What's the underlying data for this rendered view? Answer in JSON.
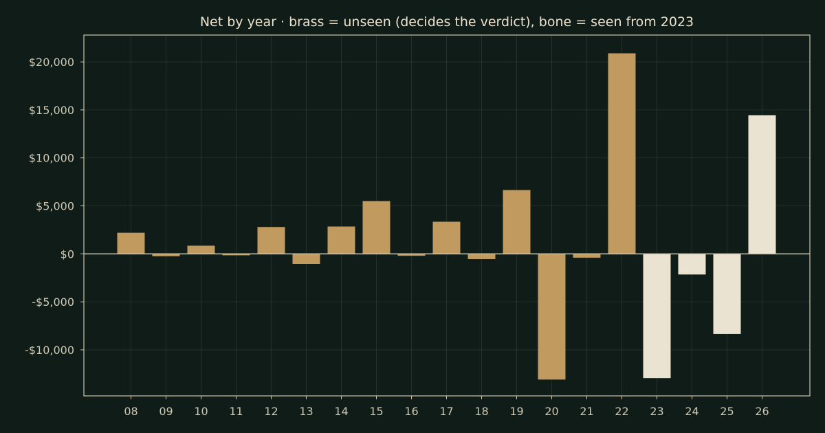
{
  "chart_data": {
    "type": "bar",
    "title": "Net by year  ·  brass = unseen (decides the verdict), bone = seen from 2023",
    "xlabel": "",
    "ylabel": "",
    "categories": [
      "08",
      "09",
      "10",
      "11",
      "12",
      "13",
      "14",
      "15",
      "16",
      "17",
      "18",
      "19",
      "20",
      "21",
      "22",
      "23",
      "24",
      "25",
      "26"
    ],
    "values": [
      2200,
      -250,
      850,
      -150,
      2800,
      -1050,
      2850,
      5500,
      -200,
      3350,
      -550,
      6650,
      -13100,
      -400,
      20900,
      -12950,
      -2150,
      -8350,
      14450
    ],
    "groups": [
      "unseen",
      "unseen",
      "unseen",
      "unseen",
      "unseen",
      "unseen",
      "unseen",
      "unseen",
      "unseen",
      "unseen",
      "unseen",
      "unseen",
      "unseen",
      "unseen",
      "unseen",
      "seen",
      "seen",
      "seen",
      "seen"
    ],
    "ylim": [
      -14800,
      22800
    ],
    "yticks": [
      -10000,
      -5000,
      0,
      5000,
      10000,
      15000,
      20000
    ],
    "ytick_labels": [
      "-$10,000",
      "-$5,000",
      "$0",
      "$5,000",
      "$10,000",
      "$15,000",
      "$20,000"
    ],
    "grid": true,
    "colors": {
      "unseen": "#c09a5e",
      "seen": "#ebe3d1"
    }
  }
}
